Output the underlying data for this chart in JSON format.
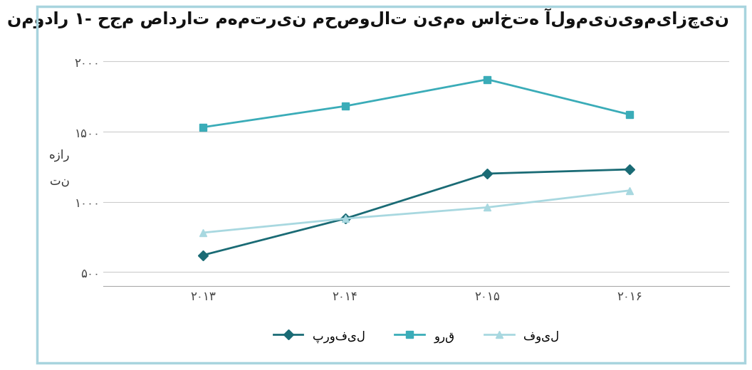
{
  "title": "نمودار ۱- حجم صادرات مهمترین محصولات نیمه ساخته آلومینیومیازچین",
  "xlabel_years": [
    "۲۰۱۳",
    "۲۰۱۴",
    "۲۰۱۵",
    "۲۰۱۶"
  ],
  "x_values": [
    2013,
    2014,
    2015,
    2016
  ],
  "ylabel_line1": "هزار",
  "ylabel_line2": "تن",
  "ytick_labels": [
    "۵۰۰",
    "۱۰۰۰",
    "۱۵۰۰",
    "۲۰۰۰"
  ],
  "ytick_values": [
    500,
    1000,
    1500,
    2000
  ],
  "varaq": [
    1530,
    1680,
    1870,
    1620
  ],
  "profil": [
    620,
    880,
    1200,
    1230
  ],
  "foil": [
    780,
    880,
    960,
    1080
  ],
  "varaq_color": "#3aacb8",
  "profil_color": "#1a6b75",
  "foil_color": "#a8d8e0",
  "legend_varaq": "ورق",
  "legend_profil": "پروفیل",
  "legend_foil": "فویل",
  "background_color": "#ffffff",
  "border_color": "#a8d4de",
  "grid_color": "#cccccc",
  "ylim_min": 400,
  "ylim_max": 2100,
  "title_fontsize": 17,
  "axis_fontsize": 12,
  "legend_fontsize": 12
}
